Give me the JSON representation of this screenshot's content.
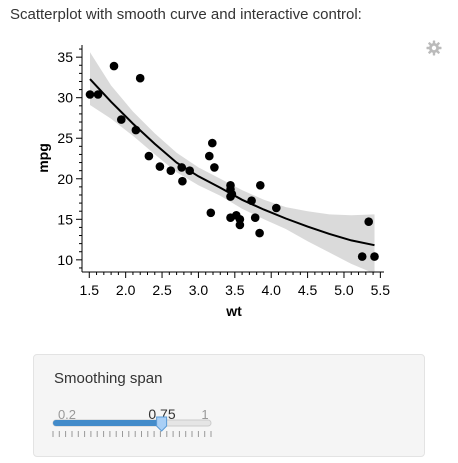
{
  "title": "Scatterplot with smooth curve and interactive control:",
  "gear_icon": "gear-icon",
  "chart_data": {
    "type": "scatter",
    "xlabel": "wt",
    "ylabel": "mpg",
    "xlim": [
      1.4,
      5.55
    ],
    "ylim": [
      8.5,
      36.5
    ],
    "x_ticks": [
      "1.5",
      "2.0",
      "2.5",
      "3.0",
      "3.5",
      "4.0",
      "4.5",
      "5.0",
      "5.5"
    ],
    "y_ticks": [
      "10",
      "15",
      "20",
      "25",
      "30",
      "35"
    ],
    "points": [
      {
        "x": 1.51,
        "y": 30.4
      },
      {
        "x": 1.62,
        "y": 30.4
      },
      {
        "x": 1.84,
        "y": 33.9
      },
      {
        "x": 1.94,
        "y": 27.3
      },
      {
        "x": 2.14,
        "y": 26.0
      },
      {
        "x": 2.2,
        "y": 32.4
      },
      {
        "x": 2.32,
        "y": 22.8
      },
      {
        "x": 2.47,
        "y": 21.5
      },
      {
        "x": 2.62,
        "y": 21.0
      },
      {
        "x": 2.78,
        "y": 19.7
      },
      {
        "x": 2.77,
        "y": 21.4
      },
      {
        "x": 2.88,
        "y": 21.0
      },
      {
        "x": 3.15,
        "y": 22.8
      },
      {
        "x": 3.17,
        "y": 15.8
      },
      {
        "x": 3.19,
        "y": 24.4
      },
      {
        "x": 3.22,
        "y": 21.4
      },
      {
        "x": 3.44,
        "y": 18.7
      },
      {
        "x": 3.44,
        "y": 19.2
      },
      {
        "x": 3.44,
        "y": 17.8
      },
      {
        "x": 3.44,
        "y": 15.2
      },
      {
        "x": 3.46,
        "y": 18.1
      },
      {
        "x": 3.52,
        "y": 15.5
      },
      {
        "x": 3.57,
        "y": 14.3
      },
      {
        "x": 3.57,
        "y": 15.0
      },
      {
        "x": 3.73,
        "y": 17.3
      },
      {
        "x": 3.78,
        "y": 15.2
      },
      {
        "x": 3.84,
        "y": 13.3
      },
      {
        "x": 3.85,
        "y": 19.2
      },
      {
        "x": 4.07,
        "y": 16.4
      },
      {
        "x": 5.25,
        "y": 10.4
      },
      {
        "x": 5.34,
        "y": 14.7
      },
      {
        "x": 5.42,
        "y": 10.4
      }
    ],
    "smooth_curve": [
      {
        "x": 1.51,
        "y": 32.3
      },
      {
        "x": 1.8,
        "y": 29.5
      },
      {
        "x": 2.1,
        "y": 26.8
      },
      {
        "x": 2.4,
        "y": 24.3
      },
      {
        "x": 2.7,
        "y": 22.0
      },
      {
        "x": 3.0,
        "y": 20.3
      },
      {
        "x": 3.3,
        "y": 18.9
      },
      {
        "x": 3.6,
        "y": 17.4
      },
      {
        "x": 3.9,
        "y": 16.2
      },
      {
        "x": 4.2,
        "y": 15.1
      },
      {
        "x": 4.5,
        "y": 14.1
      },
      {
        "x": 4.8,
        "y": 13.2
      },
      {
        "x": 5.1,
        "y": 12.4
      },
      {
        "x": 5.42,
        "y": 11.8
      }
    ],
    "band_upper": [
      35.6,
      31.5,
      28.3,
      25.6,
      23.2,
      21.4,
      20.0,
      18.6,
      17.4,
      16.5,
      16.0,
      15.6,
      15.5,
      15.6
    ],
    "band_lower": [
      29.1,
      27.4,
      25.3,
      23.0,
      20.8,
      19.2,
      17.9,
      16.3,
      15.0,
      13.8,
      12.3,
      10.9,
      9.5,
      8.3
    ],
    "colors": {
      "points": "#000000",
      "line": "#000000",
      "band": "#d3d3d3"
    }
  },
  "control": {
    "label": "Smoothing span",
    "min_label": "0.2",
    "max_label": "1",
    "value_label": "0.75",
    "min": 0.2,
    "max": 1,
    "value": 0.75,
    "tick_count": 26,
    "colors": {
      "fill": "#428bca",
      "handle": "#a9cff5"
    }
  }
}
